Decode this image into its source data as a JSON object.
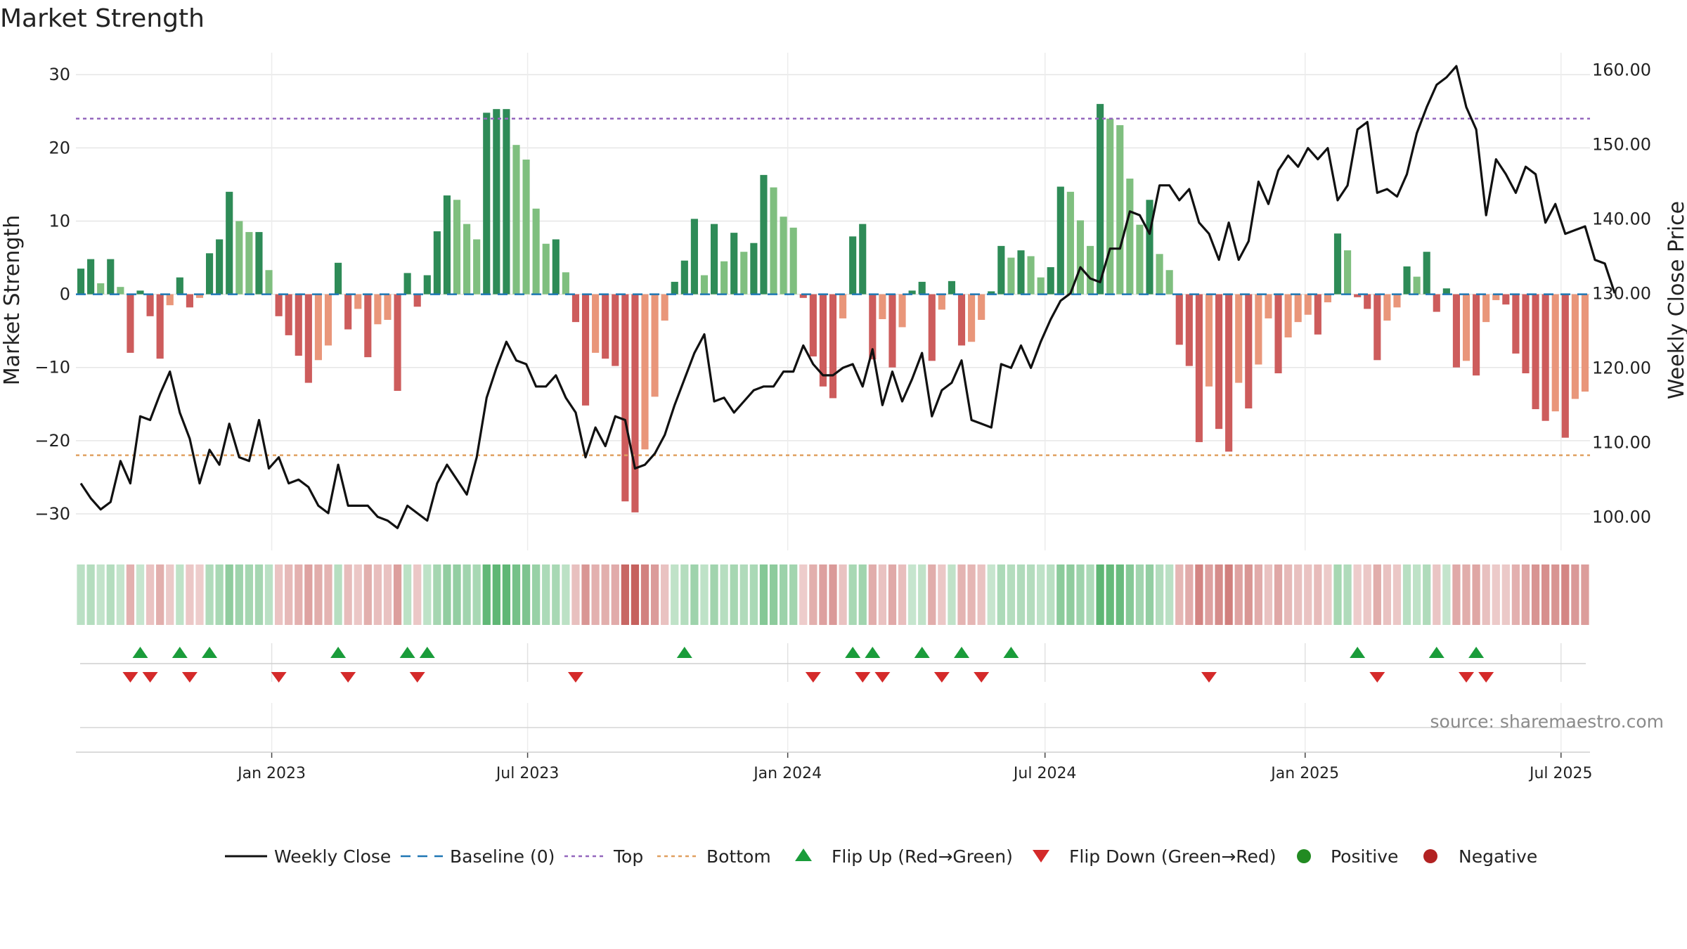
{
  "chart_data": {
    "type": "bar",
    "title": "Market Strength",
    "ylabel": "Market Strength",
    "y2label": "Weekly Close Price",
    "ylim": [
      -35,
      33
    ],
    "y2lim": [
      95.5,
      162.3
    ],
    "yticks": [
      "30",
      "20",
      "10",
      "0",
      "−10",
      "−20",
      "−30"
    ],
    "yticks_values": [
      30,
      20,
      10,
      0,
      -10,
      -20,
      -30
    ],
    "y2ticks": [
      "160.00",
      "150.00",
      "140.00",
      "130.00",
      "120.00",
      "110.00",
      "100.00"
    ],
    "y2ticks_values": [
      160,
      150,
      140,
      130,
      120,
      110,
      100
    ],
    "x_start": "2022-08-19",
    "x_step_days": 7,
    "xticks": [
      {
        "label": "Jan 2023",
        "date": "2023-01-01"
      },
      {
        "label": "Jul 2023",
        "date": "2023-07-01"
      },
      {
        "label": "Jan 2024",
        "date": "2024-01-01"
      },
      {
        "label": "Jul 2024",
        "date": "2024-07-01"
      },
      {
        "label": "Jan 2025",
        "date": "2025-01-01"
      },
      {
        "label": "Jul 2025",
        "date": "2025-07-01"
      }
    ],
    "top_threshold": 24,
    "bottom_threshold": -22,
    "strength": [
      3.5,
      4.8,
      1.5,
      4.8,
      1.0,
      -8.0,
      0.5,
      -3.0,
      -8.8,
      -1.5,
      2.3,
      -1.8,
      -0.5,
      5.6,
      7.5,
      14.0,
      10.0,
      8.5,
      8.5,
      3.3,
      -3.0,
      -5.6,
      -8.4,
      -12.1,
      -9.0,
      -7.0,
      4.3,
      -4.8,
      -2.0,
      -8.6,
      -4.1,
      -3.5,
      -13.2,
      2.9,
      -1.7,
      2.6,
      8.6,
      13.5,
      12.9,
      9.6,
      7.5,
      24.8,
      25.3,
      25.3,
      20.4,
      18.4,
      11.7,
      6.9,
      7.5,
      3.0,
      -3.8,
      -15.2,
      -8.0,
      -8.8,
      -9.8,
      -28.3,
      -29.8,
      -21.2,
      -14.0,
      -3.6,
      1.7,
      4.6,
      10.3,
      2.6,
      9.6,
      4.5,
      8.4,
      5.8,
      7.0,
      16.3,
      14.6,
      10.6,
      9.1,
      -0.5,
      -8.5,
      -12.6,
      -14.2,
      -3.3,
      7.9,
      9.6,
      -8.9,
      -3.4,
      -10.0,
      -4.5,
      0.5,
      1.7,
      -9.1,
      -2.1,
      1.8,
      -7.0,
      -6.5,
      -3.5,
      0.4,
      6.6,
      5.0,
      6.0,
      5.2,
      2.3,
      3.7,
      14.7,
      14.0,
      10.1,
      6.6,
      26.0,
      24.0,
      23.1,
      15.8,
      9.5,
      12.9,
      5.5,
      3.3,
      -6.9,
      -9.8,
      -20.2,
      -12.6,
      -18.4,
      -21.5,
      -12.1,
      -15.6,
      -9.6,
      -3.3,
      -10.8,
      -5.9,
      -3.8,
      -2.8,
      -5.5,
      -1.1,
      8.3,
      6.0,
      -0.4,
      -2.0,
      -9.0,
      -3.6,
      -1.8,
      3.8,
      2.4,
      5.8,
      -2.4,
      0.8,
      -10.0,
      -9.1,
      -11.1,
      -3.8,
      -0.8,
      -1.4,
      -8.1,
      -10.8,
      -15.7,
      -17.3,
      -16.0,
      -19.6,
      -14.3,
      -13.3
    ],
    "weekly_close": [
      104.5,
      102.5,
      101.0,
      102.0,
      107.5,
      104.5,
      113.5,
      113.0,
      116.5,
      119.5,
      114.0,
      110.5,
      104.5,
      109.0,
      107.0,
      112.5,
      108.0,
      107.5,
      113.0,
      106.5,
      108.0,
      104.5,
      105.0,
      104.0,
      101.5,
      100.5,
      107.0,
      101.5,
      101.5,
      101.5,
      100.0,
      99.5,
      98.5,
      101.5,
      100.5,
      99.5,
      104.5,
      107.0,
      105.0,
      103.0,
      108.0,
      116.0,
      120.0,
      123.5,
      121.0,
      120.5,
      117.5,
      117.5,
      119.0,
      116.0,
      114.0,
      108.0,
      112.0,
      109.5,
      113.5,
      113.0,
      106.5,
      107.0,
      108.5,
      111.0,
      115.0,
      118.5,
      122.0,
      124.5,
      115.5,
      116.0,
      114.0,
      115.5,
      117.0,
      117.5,
      117.5,
      119.5,
      119.5,
      123.0,
      120.5,
      119.0,
      119.0,
      120.0,
      120.5,
      117.5,
      122.5,
      115.0,
      119.5,
      115.5,
      118.5,
      122.0,
      113.5,
      117.0,
      118.0,
      121.0,
      113.0,
      112.5,
      112.0,
      120.5,
      120.0,
      123.0,
      120.0,
      123.5,
      126.5,
      129.0,
      130.0,
      133.5,
      132.0,
      131.5,
      136.0,
      136.0,
      141.0,
      140.5,
      138.0,
      144.5,
      144.5,
      142.5,
      144.0,
      139.5,
      138.0,
      134.5,
      139.5,
      134.5,
      137.0,
      145.0,
      142.0,
      146.5,
      148.5,
      147.0,
      149.5,
      148.0,
      149.5,
      142.5,
      144.5,
      152.0,
      153.0,
      143.5,
      144.0,
      143.0,
      146.0,
      151.5,
      155.0,
      158.0,
      159.0,
      160.5,
      155.0,
      152.0,
      140.5,
      148.0,
      146.0,
      143.5,
      147.0,
      146.0,
      139.5,
      142.0,
      138.0,
      138.5,
      139.0,
      134.5,
      134.0,
      130.0
    ],
    "flip_up_weeks": [
      6,
      10,
      13,
      26,
      33,
      35,
      61,
      78,
      80,
      85,
      89,
      94,
      129,
      137,
      141
    ],
    "flip_down_weeks": [
      5,
      7,
      11,
      20,
      27,
      34,
      50,
      74,
      79,
      81,
      87,
      91,
      114,
      131,
      140,
      142
    ],
    "legend": [
      "Weekly Close",
      "Baseline (0)",
      "Top",
      "Bottom",
      "Flip Up (Red→Green)",
      "Flip Down (Green→Red)",
      "Positive",
      "Negative"
    ],
    "legend_placement": "bottom",
    "grid": true,
    "colors": {
      "positive_strong": "#2e8b57",
      "positive_weak": "#7fbf7f",
      "negative_strong": "#cd5c5c",
      "negative_weak": "#e9967a",
      "top_line": "#9467bd",
      "bottom_line": "#e0a060",
      "baseline": "#1f77b4",
      "close_line": "#111111",
      "flip_up": "#1a9c3a",
      "flip_down": "#d42a2a",
      "positive_dot": "#228b22",
      "negative_dot": "#b22222"
    }
  },
  "source_label": "source: sharemaestro.com"
}
